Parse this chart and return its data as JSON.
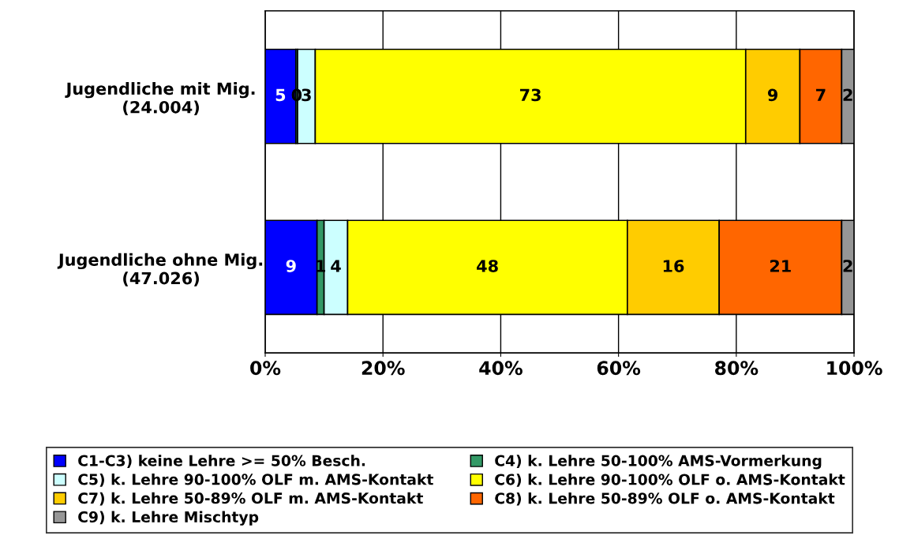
{
  "chart_data": {
    "type": "bar",
    "orientation": "horizontal",
    "stacked": true,
    "categories": [
      "Jugendliche mit Mig.\n(24.004)",
      "Jugendliche ohne Mig.\n(47.026)"
    ],
    "series": [
      {
        "name": "C1-C3) keine Lehre >= 50% Besch.",
        "color": "#0000ff",
        "values": [
          5.2,
          8.8
        ],
        "value_labels": [
          "5",
          "9"
        ]
      },
      {
        "name": "C4) k. Lehre 50-100% AMS-Vormerkung",
        "color": "#339966",
        "values": [
          0.3,
          1.2
        ],
        "value_labels": [
          "0",
          "1"
        ]
      },
      {
        "name": "C5) k. Lehre 90-100% OLF m. AMS-Kontakt",
        "color": "#ccffff",
        "values": [
          3.0,
          4.0
        ],
        "value_labels": [
          "3",
          "4"
        ]
      },
      {
        "name": "C6) k. Lehre 90-100% OLF o. AMS-Kontakt",
        "color": "#ffff00",
        "values": [
          73.1,
          47.5
        ],
        "value_labels": [
          "73",
          "48"
        ]
      },
      {
        "name": "C7) k. Lehre 50-89% OLF m. AMS-Kontakt",
        "color": "#ffcc00",
        "values": [
          9.2,
          15.6
        ],
        "value_labels": [
          "9",
          "16"
        ]
      },
      {
        "name": "C8) k. Lehre 50-89% OLF o. AMS-Kontakt",
        "color": "#ff6600",
        "values": [
          7.1,
          20.8
        ],
        "value_labels": [
          "7",
          "21"
        ]
      },
      {
        "name": "C9) k. Lehre Mischtyp",
        "color": "#969696",
        "values": [
          2.1,
          2.1
        ],
        "value_labels": [
          "2",
          "2"
        ]
      }
    ],
    "xlim": [
      0,
      100
    ],
    "xticks": [
      {
        "value": 0,
        "label": "0%"
      },
      {
        "value": 20,
        "label": "20%"
      },
      {
        "value": 40,
        "label": "40%"
      },
      {
        "value": 60,
        "label": "60%"
      },
      {
        "value": 80,
        "label": "80%"
      },
      {
        "value": 100,
        "label": "100%"
      }
    ],
    "grid": "x",
    "legend": "bottom"
  }
}
